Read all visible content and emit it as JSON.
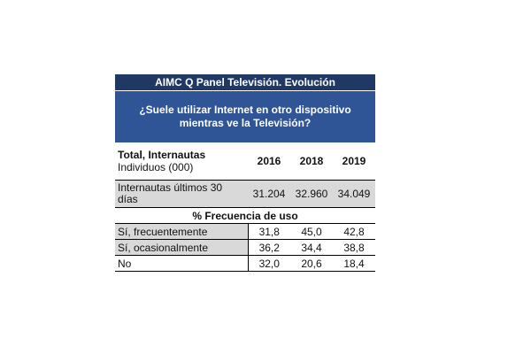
{
  "table": {
    "title": "AIMC Q Panel Televisión. Evolución",
    "question_line1": "¿Suele utilizar Internet en otro dispositivo",
    "question_line2": "mientras ve la Televisión?",
    "header_label_bold": "Total, Internautas",
    "header_label_sub": "Individuos (000)",
    "years": [
      "2016",
      "2018",
      "2019"
    ],
    "base_label_line1": "Internautas últimos 30",
    "base_label_line2": "días",
    "base_values": [
      "31.204",
      "32.960",
      "34.049"
    ],
    "section_label": "% Frecuencia de uso",
    "rows": [
      {
        "label": "Sí, frecuentemente",
        "values": [
          "31,8",
          "45,0",
          "42,8"
        ]
      },
      {
        "label": "Sí, ocasionalmente",
        "values": [
          "36,2",
          "34,4",
          "38,8"
        ]
      },
      {
        "label": "No",
        "values": [
          "32,0",
          "20,6",
          "18,4"
        ]
      }
    ]
  },
  "chart_data": {
    "type": "table",
    "title": "AIMC Q Panel Televisión. Evolución",
    "subtitle": "¿Suele utilizar Internet en otro dispositivo mientras ve la Televisión?",
    "columns": [
      "2016",
      "2018",
      "2019"
    ],
    "base": {
      "label": "Internautas últimos 30 días",
      "unit": "Individuos (000)",
      "values": [
        31204,
        32960,
        34049
      ]
    },
    "section": "% Frecuencia de uso",
    "rows": [
      {
        "label": "Sí, frecuentemente",
        "values": [
          31.8,
          45.0,
          42.8
        ]
      },
      {
        "label": "Sí, ocasionalmente",
        "values": [
          36.2,
          34.4,
          38.8
        ]
      },
      {
        "label": "No",
        "values": [
          32.0,
          20.6,
          18.4
        ]
      }
    ]
  }
}
